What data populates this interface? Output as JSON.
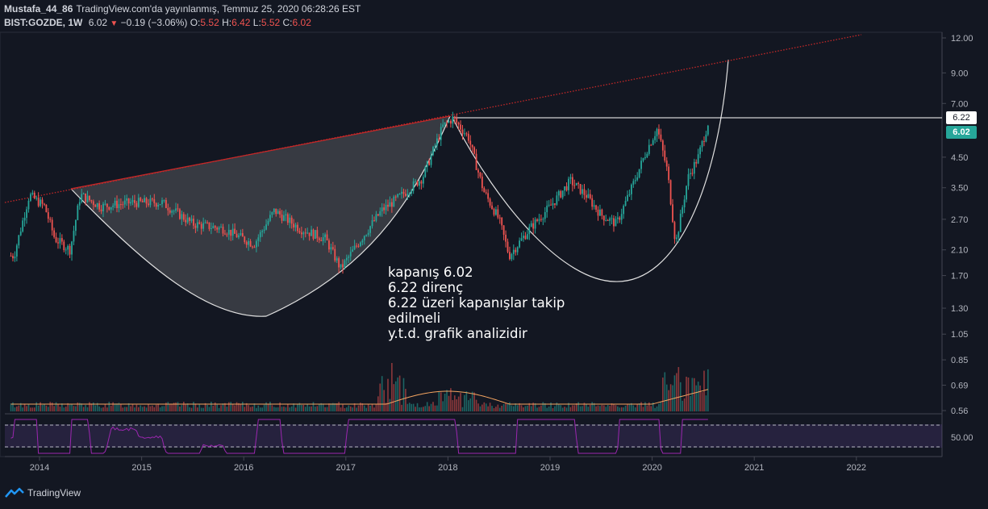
{
  "header": {
    "line1": {
      "author": "Mustafa_44_86",
      "text": "TradingView.com'da yayınlanmış, Temmuz 25, 2020 06:28:26 EST"
    },
    "line2": {
      "symbol": "BIST:GOZDE, 1W",
      "last": "6.02",
      "change": "−0.19 (−3.06%)",
      "o_label": "O:",
      "o_val": "5.52",
      "h_label": "H:",
      "h_val": "6.42",
      "l_label": "L:",
      "l_val": "5.52",
      "c_label": "C:",
      "c_val": "6.02"
    }
  },
  "note": {
    "lines": [
      "kapanış 6.02",
      "6.22 direnç",
      "6.22 üzeri kapanışlar takip",
      "edilmeli",
      "y.t.d. grafik analizidir"
    ]
  },
  "price_tags": {
    "resistance": "6.22",
    "last": "6.02"
  },
  "branding": {
    "name": "TradingView"
  },
  "colors": {
    "background": "#131722",
    "up": "#26a69a",
    "down": "#ef5350",
    "trendline": "#c62828",
    "rsi": "#9c27b0",
    "volume_ma": "#f4a460"
  },
  "chart_data": {
    "type": "candlestick",
    "symbol": "BIST:GOZDE",
    "interval": "1W",
    "y_scale": "log",
    "y_ticks": [
      "12.00",
      "9.00",
      "7.00",
      "6.22",
      "6.02",
      "4.50",
      "3.50",
      "2.70",
      "2.10",
      "1.70",
      "1.30",
      "1.05",
      "0.85",
      "0.69",
      "0.56"
    ],
    "x_ticks": [
      "2014",
      "2015",
      "2016",
      "2017",
      "2018",
      "2019",
      "2020",
      "2021",
      "2022"
    ],
    "approx_weekly_close": [
      {
        "t": 2013.75,
        "v": 2.0
      },
      {
        "t": 2013.9,
        "v": 3.3
      },
      {
        "t": 2014.05,
        "v": 3.0
      },
      {
        "t": 2014.15,
        "v": 2.3
      },
      {
        "t": 2014.3,
        "v": 2.1
      },
      {
        "t": 2014.4,
        "v": 3.3
      },
      {
        "t": 2014.6,
        "v": 3.0
      },
      {
        "t": 2014.9,
        "v": 3.1
      },
      {
        "t": 2015.2,
        "v": 3.1
      },
      {
        "t": 2015.5,
        "v": 2.6
      },
      {
        "t": 2015.8,
        "v": 2.5
      },
      {
        "t": 2016.1,
        "v": 2.2
      },
      {
        "t": 2016.3,
        "v": 2.9
      },
      {
        "t": 2016.55,
        "v": 2.5
      },
      {
        "t": 2016.8,
        "v": 2.3
      },
      {
        "t": 2016.95,
        "v": 1.8
      },
      {
        "t": 2017.15,
        "v": 2.3
      },
      {
        "t": 2017.35,
        "v": 2.9
      },
      {
        "t": 2017.55,
        "v": 3.3
      },
      {
        "t": 2017.75,
        "v": 3.8
      },
      {
        "t": 2017.95,
        "v": 5.8
      },
      {
        "t": 2018.05,
        "v": 6.2
      },
      {
        "t": 2018.2,
        "v": 5.3
      },
      {
        "t": 2018.35,
        "v": 3.4
      },
      {
        "t": 2018.5,
        "v": 2.7
      },
      {
        "t": 2018.6,
        "v": 2.0
      },
      {
        "t": 2018.8,
        "v": 2.5
      },
      {
        "t": 2019.0,
        "v": 3.0
      },
      {
        "t": 2019.2,
        "v": 3.7
      },
      {
        "t": 2019.35,
        "v": 3.3
      },
      {
        "t": 2019.5,
        "v": 2.8
      },
      {
        "t": 2019.65,
        "v": 2.6
      },
      {
        "t": 2019.8,
        "v": 3.5
      },
      {
        "t": 2019.95,
        "v": 4.8
      },
      {
        "t": 2020.05,
        "v": 5.7
      },
      {
        "t": 2020.15,
        "v": 4.0
      },
      {
        "t": 2020.23,
        "v": 2.2
      },
      {
        "t": 2020.35,
        "v": 3.8
      },
      {
        "t": 2020.45,
        "v": 4.5
      },
      {
        "t": 2020.52,
        "v": 5.5
      },
      {
        "t": 2020.55,
        "v": 6.02
      }
    ],
    "resistance_level": 6.22,
    "last_close": 6.02,
    "rsi_panel": {
      "label": "50.00",
      "upper_band": 70,
      "lower_band": 30
    }
  }
}
